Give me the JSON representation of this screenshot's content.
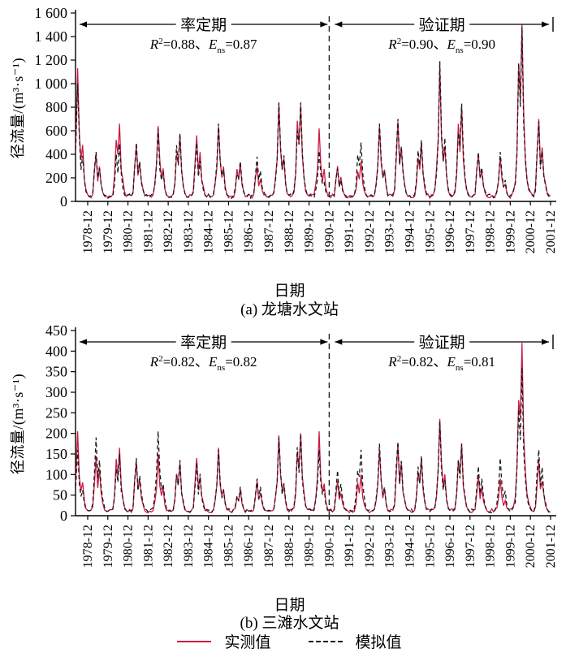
{
  "figure": {
    "background": "#ffffff",
    "legend": {
      "observed_label": "实测值",
      "simulated_label": "模拟值",
      "observed_color": "#cb1b45",
      "simulated_color": "#1a1a1a"
    }
  },
  "chart_data": [
    {
      "type": "line",
      "station_caption": "(a) 龙塘水文站",
      "xlabel": "日期",
      "ylabel": "径流量/(m³·s⁻¹)",
      "ylim": [
        0,
        1600
      ],
      "ytick_values": [
        0,
        200,
        400,
        600,
        800,
        1000,
        1200,
        1400,
        1600
      ],
      "ytick_labels": [
        "0",
        "200",
        "400",
        "600",
        "800",
        "1 000",
        "1 200",
        "1 400",
        "1 600"
      ],
      "xtick_labels": [
        "1978-12",
        "1979-12",
        "1980-12",
        "1981-12",
        "1982-12",
        "1983-12",
        "1984-12",
        "1985-12",
        "1986-12",
        "1987-12",
        "1988-12",
        "1989-12",
        "1990-12",
        "1991-12",
        "1992-12",
        "1993-12",
        "1994-12",
        "1995-12",
        "1996-12",
        "1997-12",
        "1998-12",
        "1999-12",
        "2000-12",
        "2001-12"
      ],
      "points_per_year": 12,
      "divider_tick": "1990-12",
      "grid": false,
      "legend_position": "bottom",
      "periods": [
        {
          "label": "率定期",
          "r2": "0.88",
          "ens": "0.87",
          "range": [
            "1978-01",
            "1990-12"
          ]
        },
        {
          "label": "验证期",
          "r2": "0.90",
          "ens": "0.90",
          "range": [
            "1991-01",
            "2001-12"
          ]
        }
      ],
      "series": [
        {
          "name": "实测值",
          "line": "solid",
          "color": "#cb1b45",
          "annual_peaks": [
            1130,
            400,
            660,
            480,
            640,
            560,
            560,
            640,
            330,
            300,
            830,
            820,
            620,
            300,
            340,
            640,
            680,
            500,
            1150,
            810,
            400,
            380,
            1500,
            700
          ]
        },
        {
          "name": "模拟值",
          "line": "dashed",
          "color": "#1a1a1a",
          "annual_peaks": [
            1000,
            420,
            490,
            500,
            620,
            580,
            500,
            660,
            340,
            380,
            840,
            840,
            430,
            280,
            500,
            660,
            700,
            520,
            1190,
            830,
            420,
            420,
            1480,
            680
          ]
        }
      ],
      "baseflow": 45,
      "seasonal_profiles": [
        [
          0.04,
          0.05,
          0.09,
          0.22,
          0.45,
          1.0,
          0.5,
          0.3,
          0.42,
          0.18,
          0.08,
          0.05
        ],
        [
          0.05,
          0.06,
          0.15,
          0.6,
          1.0,
          0.45,
          0.7,
          0.35,
          0.2,
          0.1,
          0.06,
          0.05
        ],
        [
          0.04,
          0.06,
          0.1,
          0.3,
          0.75,
          0.55,
          1.0,
          0.45,
          0.25,
          0.12,
          0.07,
          0.05
        ]
      ],
      "year_profile_index": [
        0,
        1,
        2,
        1,
        0,
        2,
        1,
        0,
        2,
        1,
        0,
        2,
        0,
        1,
        2,
        0,
        1,
        2,
        0,
        2,
        1,
        0,
        2,
        1
      ]
    },
    {
      "type": "line",
      "station_caption": "(b) 三滩水文站",
      "xlabel": "日期",
      "ylabel": "径流量/(m³·s⁻¹)",
      "ylim": [
        0,
        450
      ],
      "ytick_values": [
        0,
        50,
        100,
        150,
        200,
        250,
        300,
        350,
        400,
        450
      ],
      "ytick_labels": [
        "0",
        "50",
        "100",
        "150",
        "200",
        "250",
        "300",
        "350",
        "400",
        "450"
      ],
      "xtick_labels": [
        "1978-12",
        "1979-12",
        "1980-12",
        "1981-12",
        "1982-12",
        "1983-12",
        "1984-12",
        "1985-12",
        "1986-12",
        "1987-12",
        "1988-12",
        "1989-12",
        "1990-12",
        "1991-12",
        "1992-12",
        "1993-12",
        "1994-12",
        "1995-12",
        "1996-12",
        "1997-12",
        "1998-12",
        "1999-12",
        "2000-12",
        "2001-12"
      ],
      "points_per_year": 12,
      "divider_tick": "1990-12",
      "grid": false,
      "legend_position": "bottom",
      "periods": [
        {
          "label": "率定期",
          "r2": "0.82",
          "ens": "0.82",
          "range": [
            "1978-01",
            "1990-12"
          ]
        },
        {
          "label": "验证期",
          "r2": "0.82",
          "ens": "0.81",
          "range": [
            "1991-01",
            "2001-12"
          ]
        }
      ],
      "series": [
        {
          "name": "实测值",
          "line": "solid",
          "color": "#cb1b45",
          "annual_peaks": [
            205,
            145,
            165,
            130,
            150,
            130,
            140,
            165,
            65,
            85,
            195,
            200,
            205,
            85,
            100,
            160,
            175,
            140,
            235,
            175,
            100,
            90,
            420,
            135
          ]
        },
        {
          "name": "模拟值",
          "line": "dashed",
          "color": "#1a1a1a",
          "annual_peaks": [
            160,
            190,
            150,
            140,
            205,
            135,
            130,
            160,
            70,
            90,
            190,
            200,
            160,
            110,
            160,
            175,
            180,
            145,
            230,
            175,
            120,
            140,
            360,
            160
          ]
        }
      ],
      "baseflow": 12,
      "seasonal_profiles": [
        [
          0.04,
          0.05,
          0.09,
          0.22,
          0.45,
          1.0,
          0.5,
          0.3,
          0.42,
          0.18,
          0.08,
          0.05
        ],
        [
          0.05,
          0.06,
          0.15,
          0.6,
          1.0,
          0.45,
          0.7,
          0.35,
          0.2,
          0.1,
          0.06,
          0.05
        ],
        [
          0.04,
          0.06,
          0.1,
          0.3,
          0.75,
          0.55,
          1.0,
          0.45,
          0.25,
          0.12,
          0.07,
          0.05
        ]
      ],
      "year_profile_index": [
        0,
        1,
        2,
        1,
        0,
        2,
        1,
        0,
        2,
        1,
        0,
        2,
        0,
        1,
        2,
        0,
        1,
        2,
        0,
        2,
        1,
        0,
        2,
        1
      ]
    }
  ]
}
